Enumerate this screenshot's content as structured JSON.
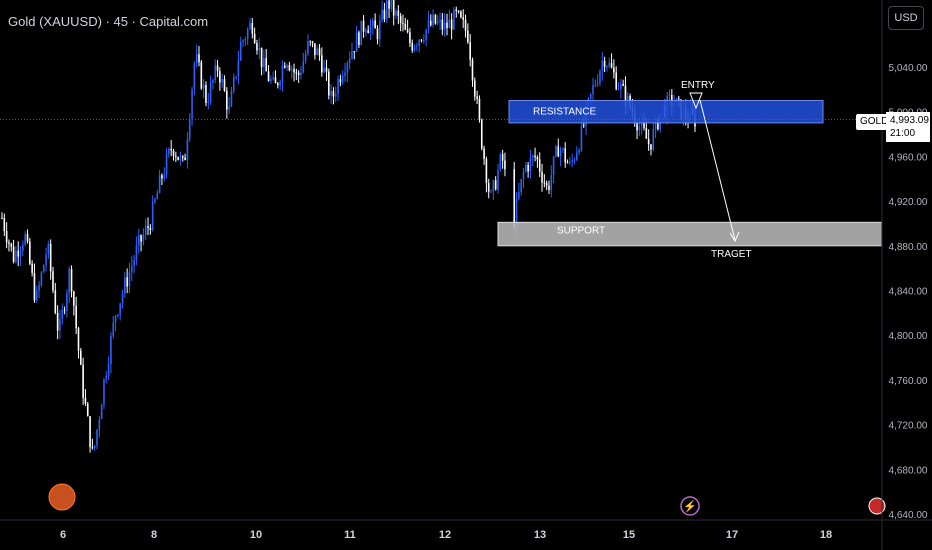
{
  "header": {
    "title": "Gold (XAUUSD) · 45 · Capital.com",
    "currency_button": "USD"
  },
  "last_price": {
    "symbol": "GOLD",
    "value": "4,993.09",
    "countdown": "21:00"
  },
  "colors": {
    "up_candle": "#2962ff",
    "down_candle": "#ffffff",
    "resistance_zone": "#1e4bd2",
    "support_zone": "#b4b4b4",
    "low_marker": "#c8501e",
    "flash_icon": "#ba68c8"
  },
  "chart_data": {
    "type": "candlestick",
    "y_axis": {
      "ticks": [
        "5,040.00",
        "5,000.00",
        "4,960.00",
        "4,920.00",
        "4,880.00",
        "4,840.00",
        "4,800.00",
        "4,760.00",
        "4,720.00",
        "4,680.00",
        "4,640.00"
      ],
      "range": [
        4630,
        5098
      ]
    },
    "x_axis": {
      "ticks": [
        "6",
        "8",
        "10",
        "11",
        "12",
        "13",
        "15",
        "17",
        "18"
      ]
    },
    "annotations": {
      "resistance": {
        "label": "RESISTANCE",
        "price_low": 4990,
        "price_high": 5010
      },
      "support": {
        "label": "SUPPORT",
        "price_low": 4880,
        "price_high": 4901
      },
      "entry": {
        "label": "ENTRY",
        "price": 5003
      },
      "target": {
        "label": "TRAGET",
        "price": 4887
      }
    },
    "price_path": [
      4905,
      4870,
      4890,
      4830,
      4880,
      4800,
      4860,
      4760,
      4690,
      4760,
      4820,
      4850,
      4880,
      4900,
      4940,
      4970,
      4950,
      5050,
      5010,
      5040,
      5000,
      5060,
      5080,
      5040,
      5020,
      5050,
      5030,
      5060,
      5050,
      5010,
      5040,
      5060,
      5080,
      5070,
      5098,
      5080,
      5060,
      5070,
      5080,
      5075,
      5085,
      5070,
      4990,
      4920,
      4960,
      4900,
      4950,
      4960,
      4930,
      4970,
      4950,
      4980,
      5020,
      5050,
      5030,
      5010,
      4990,
      4970,
      5000,
      5010,
      4998,
      4993
    ]
  }
}
